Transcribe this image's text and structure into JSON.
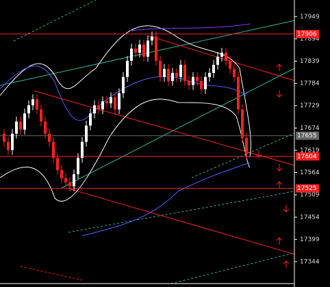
{
  "chart_data": {
    "type": "candlestick",
    "ylim": [
      17290,
      17990
    ],
    "yticks": [
      17949,
      17894,
      17839,
      17784,
      17729,
      17674,
      17619,
      17564,
      17509,
      17454,
      17399,
      17344
    ],
    "up_color": "#ffffff",
    "down_color": "#ff2020",
    "open": [
      17660,
      17640,
      17620,
      17660,
      17690,
      17670,
      17710,
      17730,
      17745,
      17720,
      17690,
      17660,
      17640,
      17600,
      17570,
      17550,
      17540,
      17530,
      17560,
      17600,
      17640,
      17680,
      17710,
      17730,
      17720,
      17740,
      17735,
      17750,
      17720,
      17760,
      17800,
      17840,
      17870,
      17860,
      17880,
      17850,
      17890,
      17900,
      17840,
      17800,
      17820,
      17790,
      17810,
      17800,
      17830,
      17790,
      17780,
      17800,
      17790,
      17770,
      17800,
      17810,
      17830,
      17850,
      17860,
      17840,
      17820,
      17800,
      17720,
      17650
    ],
    "high": [
      17672,
      17652,
      17672,
      17702,
      17702,
      17722,
      17742,
      17757,
      17757,
      17732,
      17702,
      17672,
      17652,
      17612,
      17582,
      17562,
      17552,
      17572,
      17612,
      17652,
      17692,
      17722,
      17742,
      17742,
      17752,
      17752,
      17762,
      17762,
      17772,
      17812,
      17852,
      17882,
      17882,
      17892,
      17892,
      17902,
      17912,
      17912,
      17852,
      17832,
      17832,
      17822,
      17822,
      17842,
      17842,
      17802,
      17812,
      17812,
      17802,
      17812,
      17822,
      17842,
      17862,
      17872,
      17872,
      17852,
      17832,
      17812,
      17732,
      17662
    ],
    "low": [
      17628,
      17608,
      17608,
      17648,
      17658,
      17658,
      17698,
      17718,
      17708,
      17678,
      17648,
      17628,
      17588,
      17558,
      17538,
      17528,
      17518,
      17518,
      17548,
      17588,
      17628,
      17668,
      17698,
      17708,
      17708,
      17723,
      17723,
      17708,
      17708,
      17748,
      17788,
      17828,
      17848,
      17848,
      17838,
      17838,
      17878,
      17828,
      17788,
      17788,
      17778,
      17778,
      17788,
      17788,
      17778,
      17768,
      17768,
      17778,
      17758,
      17758,
      17788,
      17798,
      17818,
      17838,
      17828,
      17808,
      17788,
      17708,
      17638,
      17598
    ],
    "close": [
      17640,
      17620,
      17660,
      17690,
      17670,
      17710,
      17730,
      17745,
      17720,
      17690,
      17660,
      17640,
      17600,
      17570,
      17550,
      17540,
      17530,
      17560,
      17600,
      17640,
      17680,
      17710,
      17730,
      17720,
      17740,
      17735,
      17750,
      17720,
      17760,
      17800,
      17840,
      17870,
      17860,
      17880,
      17850,
      17890,
      17900,
      17840,
      17800,
      17820,
      17790,
      17810,
      17800,
      17830,
      17790,
      17780,
      17800,
      17790,
      17770,
      17800,
      17810,
      17830,
      17850,
      17860,
      17840,
      17820,
      17800,
      17720,
      17650,
      17610
    ],
    "price_lines": [
      {
        "value": 17906,
        "color": "#ff2020"
      },
      {
        "value": 17655,
        "color": "#666666"
      },
      {
        "value": 17604,
        "color": "#ff2020"
      },
      {
        "value": 17525,
        "color": "#ff2020"
      }
    ]
  }
}
